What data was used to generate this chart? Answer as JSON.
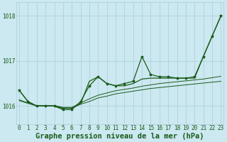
{
  "hours": [
    0,
    1,
    2,
    3,
    4,
    5,
    6,
    7,
    8,
    9,
    10,
    11,
    12,
    13,
    14,
    15,
    16,
    17,
    18,
    19,
    20,
    21,
    22,
    23
  ],
  "line_upper_smooth": [
    1016.35,
    1016.1,
    1016.0,
    1016.0,
    1016.0,
    1015.95,
    1015.95,
    1016.1,
    1016.35,
    1016.55,
    1016.5,
    1016.45,
    1016.45,
    1016.5,
    1016.6,
    1016.6,
    1016.6,
    1016.6,
    1016.62,
    1016.63,
    1016.65,
    1017.1,
    1017.55,
    1018.0
  ],
  "line_wiggly": [
    1016.35,
    1016.1,
    1016.0,
    1016.0,
    1016.0,
    1015.92,
    1015.93,
    1016.1,
    1016.45,
    1016.65,
    1016.5,
    1016.45,
    1016.5,
    1016.55,
    1017.1,
    1016.7,
    1016.65,
    1016.65,
    1016.62,
    1016.62,
    1016.65,
    1017.1,
    1017.55,
    1018.0
  ],
  "line_trend1": [
    1016.12,
    1016.06,
    1016.0,
    1016.0,
    1016.0,
    1015.96,
    1015.97,
    1016.05,
    1016.12,
    1016.2,
    1016.25,
    1016.3,
    1016.32,
    1016.35,
    1016.37,
    1016.4,
    1016.42,
    1016.44,
    1016.46,
    1016.48,
    1016.5,
    1016.52,
    1016.54,
    1016.56
  ],
  "line_trend2": [
    1016.12,
    1016.06,
    1016.0,
    1016.0,
    1016.0,
    1015.96,
    1015.97,
    1016.07,
    1016.16,
    1016.25,
    1016.3,
    1016.35,
    1016.38,
    1016.41,
    1016.44,
    1016.47,
    1016.5,
    1016.52,
    1016.54,
    1016.56,
    1016.58,
    1016.61,
    1016.64,
    1016.67
  ],
  "background_color": "#cce8f0",
  "grid_color": "#aaccdc",
  "line_color": "#1a5c1a",
  "ylabel_ticks": [
    1016,
    1017,
    1018
  ],
  "ylim": [
    1015.6,
    1018.3
  ],
  "xlim": [
    -0.3,
    23.3
  ],
  "xlabel": "Graphe pression niveau de la mer (hPa)",
  "tick_fontsize": 5.5,
  "xlabel_fontsize": 7.5
}
